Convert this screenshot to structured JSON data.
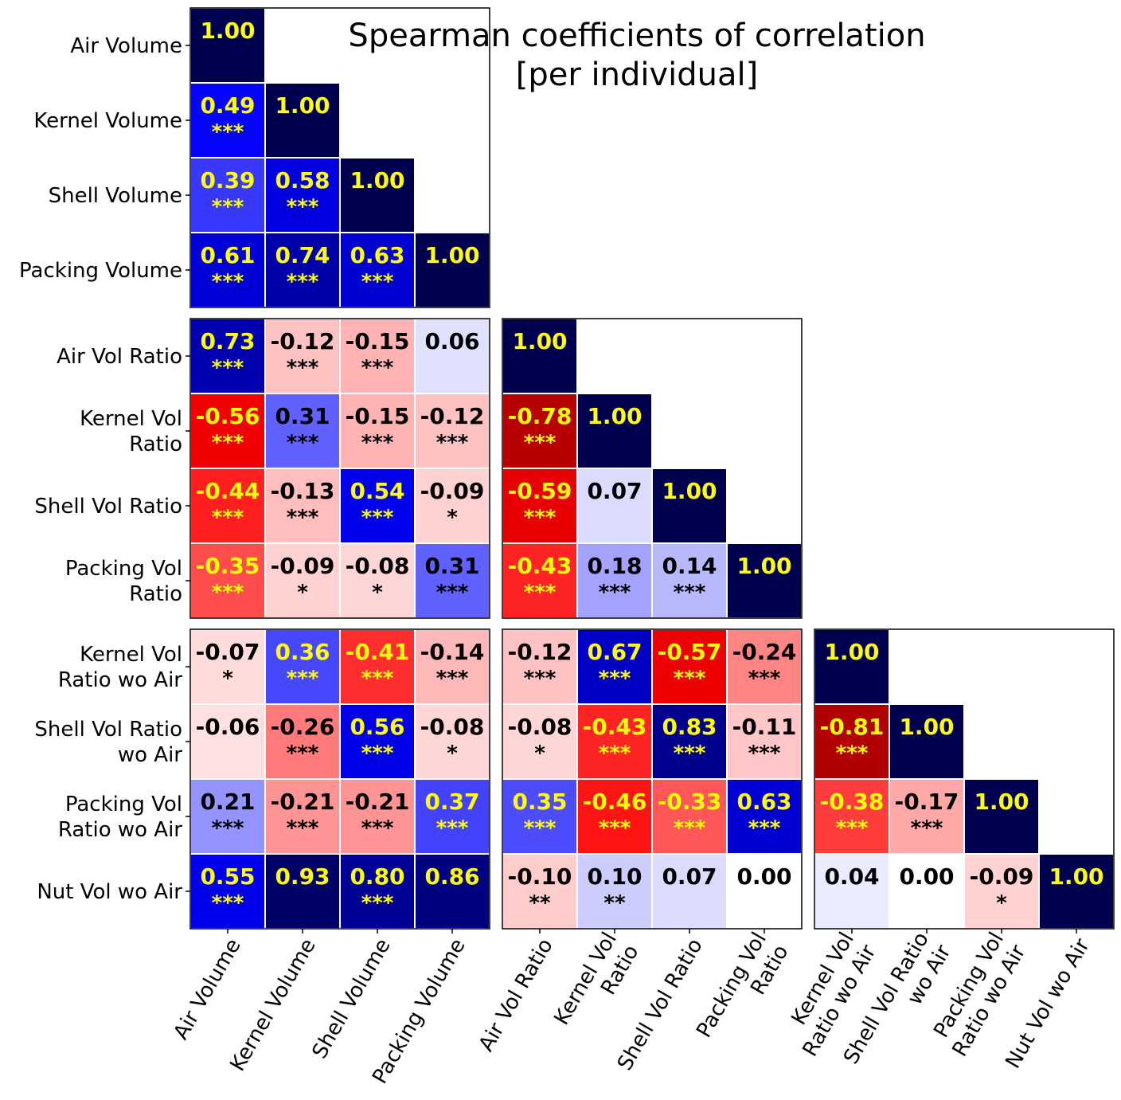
{
  "chart_data": {
    "type": "heatmap",
    "title_lines": [
      "Spearman coefficients of correlation",
      "[per individual]"
    ],
    "variables": [
      [
        "Air Volume"
      ],
      [
        "Kernel Volume"
      ],
      [
        "Shell Volume"
      ],
      [
        "Packing Volume"
      ],
      [
        "Air Vol Ratio"
      ],
      [
        "Kernel Vol",
        "Ratio"
      ],
      [
        "Shell Vol Ratio"
      ],
      [
        "Packing Vol",
        "Ratio"
      ],
      [
        "Kernel Vol",
        "Ratio wo Air"
      ],
      [
        "Shell Vol Ratio",
        "wo Air"
      ],
      [
        "Packing Vol",
        "Ratio wo Air"
      ],
      [
        "Nut Vol wo Air"
      ]
    ],
    "blocks": [
      4,
      4,
      4
    ],
    "colorscale": {
      "min": -1,
      "max": 1,
      "low": "#800000",
      "mid": "#ffffff",
      "high": "#000050"
    },
    "label_color_strong": "#ffff00",
    "label_color_weak": "#000000",
    "cells": [
      {
        "row": 0,
        "col": 0,
        "value": 1.0,
        "label": "1.00",
        "sig": ""
      },
      {
        "row": 1,
        "col": 0,
        "value": 0.49,
        "label": "0.49",
        "sig": "***"
      },
      {
        "row": 1,
        "col": 1,
        "value": 1.0,
        "label": "1.00",
        "sig": ""
      },
      {
        "row": 2,
        "col": 0,
        "value": 0.39,
        "label": "0.39",
        "sig": "***"
      },
      {
        "row": 2,
        "col": 1,
        "value": 0.58,
        "label": "0.58",
        "sig": "***"
      },
      {
        "row": 2,
        "col": 2,
        "value": 1.0,
        "label": "1.00",
        "sig": ""
      },
      {
        "row": 3,
        "col": 0,
        "value": 0.61,
        "label": "0.61",
        "sig": "***"
      },
      {
        "row": 3,
        "col": 1,
        "value": 0.74,
        "label": "0.74",
        "sig": "***"
      },
      {
        "row": 3,
        "col": 2,
        "value": 0.63,
        "label": "0.63",
        "sig": "***"
      },
      {
        "row": 3,
        "col": 3,
        "value": 1.0,
        "label": "1.00",
        "sig": ""
      },
      {
        "row": 4,
        "col": 0,
        "value": 0.73,
        "label": "0.73",
        "sig": "***"
      },
      {
        "row": 4,
        "col": 1,
        "value": -0.12,
        "label": "-0.12",
        "sig": "***"
      },
      {
        "row": 4,
        "col": 2,
        "value": -0.15,
        "label": "-0.15",
        "sig": "***"
      },
      {
        "row": 4,
        "col": 3,
        "value": 0.06,
        "label": "0.06",
        "sig": ""
      },
      {
        "row": 4,
        "col": 4,
        "value": 1.0,
        "label": "1.00",
        "sig": ""
      },
      {
        "row": 5,
        "col": 0,
        "value": -0.56,
        "label": "-0.56",
        "sig": "***"
      },
      {
        "row": 5,
        "col": 1,
        "value": 0.31,
        "label": "0.31",
        "sig": "***"
      },
      {
        "row": 5,
        "col": 2,
        "value": -0.15,
        "label": "-0.15",
        "sig": "***"
      },
      {
        "row": 5,
        "col": 3,
        "value": -0.12,
        "label": "-0.12",
        "sig": "***"
      },
      {
        "row": 5,
        "col": 4,
        "value": -0.78,
        "label": "-0.78",
        "sig": "***"
      },
      {
        "row": 5,
        "col": 5,
        "value": 1.0,
        "label": "1.00",
        "sig": ""
      },
      {
        "row": 6,
        "col": 0,
        "value": -0.44,
        "label": "-0.44",
        "sig": "***"
      },
      {
        "row": 6,
        "col": 1,
        "value": -0.13,
        "label": "-0.13",
        "sig": "***"
      },
      {
        "row": 6,
        "col": 2,
        "value": 0.54,
        "label": "0.54",
        "sig": "***"
      },
      {
        "row": 6,
        "col": 3,
        "value": -0.09,
        "label": "-0.09",
        "sig": "*"
      },
      {
        "row": 6,
        "col": 4,
        "value": -0.59,
        "label": "-0.59",
        "sig": "***"
      },
      {
        "row": 6,
        "col": 5,
        "value": 0.07,
        "label": "0.07",
        "sig": ""
      },
      {
        "row": 6,
        "col": 6,
        "value": 1.0,
        "label": "1.00",
        "sig": ""
      },
      {
        "row": 7,
        "col": 0,
        "value": -0.35,
        "label": "-0.35",
        "sig": "***"
      },
      {
        "row": 7,
        "col": 1,
        "value": -0.09,
        "label": "-0.09",
        "sig": "*"
      },
      {
        "row": 7,
        "col": 2,
        "value": -0.08,
        "label": "-0.08",
        "sig": "*"
      },
      {
        "row": 7,
        "col": 3,
        "value": 0.31,
        "label": "0.31",
        "sig": "***"
      },
      {
        "row": 7,
        "col": 4,
        "value": -0.43,
        "label": "-0.43",
        "sig": "***"
      },
      {
        "row": 7,
        "col": 5,
        "value": 0.18,
        "label": "0.18",
        "sig": "***"
      },
      {
        "row": 7,
        "col": 6,
        "value": 0.14,
        "label": "0.14",
        "sig": "***"
      },
      {
        "row": 7,
        "col": 7,
        "value": 1.0,
        "label": "1.00",
        "sig": ""
      },
      {
        "row": 8,
        "col": 0,
        "value": -0.07,
        "label": "-0.07",
        "sig": "*"
      },
      {
        "row": 8,
        "col": 1,
        "value": 0.36,
        "label": "0.36",
        "sig": "***"
      },
      {
        "row": 8,
        "col": 2,
        "value": -0.41,
        "label": "-0.41",
        "sig": "***"
      },
      {
        "row": 8,
        "col": 3,
        "value": -0.14,
        "label": "-0.14",
        "sig": "***"
      },
      {
        "row": 8,
        "col": 4,
        "value": -0.12,
        "label": "-0.12",
        "sig": "***"
      },
      {
        "row": 8,
        "col": 5,
        "value": 0.67,
        "label": "0.67",
        "sig": "***"
      },
      {
        "row": 8,
        "col": 6,
        "value": -0.57,
        "label": "-0.57",
        "sig": "***"
      },
      {
        "row": 8,
        "col": 7,
        "value": -0.24,
        "label": "-0.24",
        "sig": "***"
      },
      {
        "row": 8,
        "col": 8,
        "value": 1.0,
        "label": "1.00",
        "sig": ""
      },
      {
        "row": 9,
        "col": 0,
        "value": -0.06,
        "label": "-0.06",
        "sig": ""
      },
      {
        "row": 9,
        "col": 1,
        "value": -0.26,
        "label": "-0.26",
        "sig": "***"
      },
      {
        "row": 9,
        "col": 2,
        "value": 0.56,
        "label": "0.56",
        "sig": "***"
      },
      {
        "row": 9,
        "col": 3,
        "value": -0.08,
        "label": "-0.08",
        "sig": "*"
      },
      {
        "row": 9,
        "col": 4,
        "value": -0.08,
        "label": "-0.08",
        "sig": "*"
      },
      {
        "row": 9,
        "col": 5,
        "value": -0.43,
        "label": "-0.43",
        "sig": "***"
      },
      {
        "row": 9,
        "col": 6,
        "value": 0.83,
        "label": "0.83",
        "sig": "***"
      },
      {
        "row": 9,
        "col": 7,
        "value": -0.11,
        "label": "-0.11",
        "sig": "***"
      },
      {
        "row": 9,
        "col": 8,
        "value": -0.81,
        "label": "-0.81",
        "sig": "***"
      },
      {
        "row": 9,
        "col": 9,
        "value": 1.0,
        "label": "1.00",
        "sig": ""
      },
      {
        "row": 10,
        "col": 0,
        "value": 0.21,
        "label": "0.21",
        "sig": "***"
      },
      {
        "row": 10,
        "col": 1,
        "value": -0.21,
        "label": "-0.21",
        "sig": "***"
      },
      {
        "row": 10,
        "col": 2,
        "value": -0.21,
        "label": "-0.21",
        "sig": "***"
      },
      {
        "row": 10,
        "col": 3,
        "value": 0.37,
        "label": "0.37",
        "sig": "***"
      },
      {
        "row": 10,
        "col": 4,
        "value": 0.35,
        "label": "0.35",
        "sig": "***"
      },
      {
        "row": 10,
        "col": 5,
        "value": -0.46,
        "label": "-0.46",
        "sig": "***"
      },
      {
        "row": 10,
        "col": 6,
        "value": -0.33,
        "label": "-0.33",
        "sig": "***"
      },
      {
        "row": 10,
        "col": 7,
        "value": 0.63,
        "label": "0.63",
        "sig": "***"
      },
      {
        "row": 10,
        "col": 8,
        "value": -0.38,
        "label": "-0.38",
        "sig": "***"
      },
      {
        "row": 10,
        "col": 9,
        "value": -0.17,
        "label": "-0.17",
        "sig": "***"
      },
      {
        "row": 10,
        "col": 10,
        "value": 1.0,
        "label": "1.00",
        "sig": ""
      },
      {
        "row": 11,
        "col": 0,
        "value": 0.55,
        "label": "0.55",
        "sig": "***"
      },
      {
        "row": 11,
        "col": 1,
        "value": 0.93,
        "label": "0.93",
        "sig": ""
      },
      {
        "row": 11,
        "col": 2,
        "value": 0.8,
        "label": "0.80",
        "sig": "***"
      },
      {
        "row": 11,
        "col": 3,
        "value": 0.86,
        "label": "0.86",
        "sig": ""
      },
      {
        "row": 11,
        "col": 4,
        "value": -0.1,
        "label": "-0.10",
        "sig": "**"
      },
      {
        "row": 11,
        "col": 5,
        "value": 0.1,
        "label": "0.10",
        "sig": "**"
      },
      {
        "row": 11,
        "col": 6,
        "value": 0.07,
        "label": "0.07",
        "sig": ""
      },
      {
        "row": 11,
        "col": 7,
        "value": 0.0,
        "label": "0.00",
        "sig": ""
      },
      {
        "row": 11,
        "col": 8,
        "value": 0.04,
        "label": "0.04",
        "sig": ""
      },
      {
        "row": 11,
        "col": 9,
        "value": 0.0,
        "label": "0.00",
        "sig": ""
      },
      {
        "row": 11,
        "col": 10,
        "value": -0.09,
        "label": "-0.09",
        "sig": "*"
      },
      {
        "row": 11,
        "col": 11,
        "value": 1.0,
        "label": "1.00",
        "sig": ""
      }
    ]
  }
}
